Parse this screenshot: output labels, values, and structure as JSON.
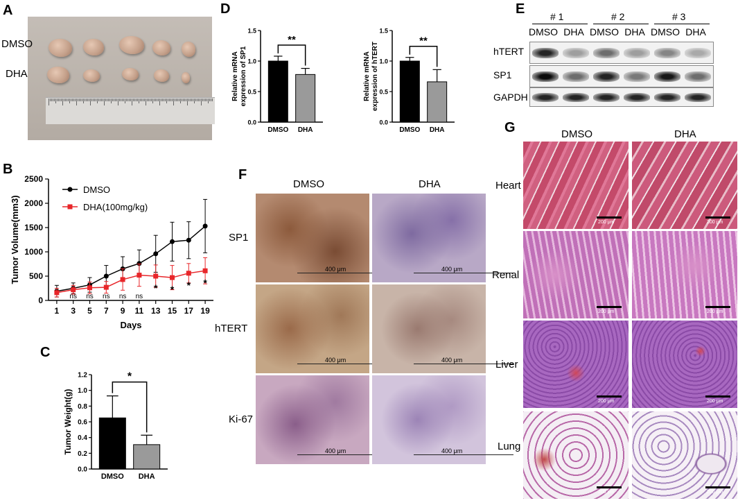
{
  "panels": {
    "A": "A",
    "B": "B",
    "C": "C",
    "D": "D",
    "E": "E",
    "F": "F",
    "G": "G"
  },
  "panelA": {
    "row_labels": [
      "DMSO",
      "DHA"
    ],
    "colors": {
      "bg": "#b8b0a8",
      "tumor": "#c4a08a",
      "ruler": "#d8d6d4"
    }
  },
  "panelB": {
    "chart_data": {
      "type": "line",
      "xlabel": "Days",
      "ylabel": "Tumor Volume(mm3)",
      "ylim": [
        0,
        2500
      ],
      "yticks": [
        0,
        500,
        1000,
        1500,
        2000,
        2500
      ],
      "x": [
        1,
        3,
        5,
        7,
        9,
        11,
        13,
        15,
        17,
        19
      ],
      "series": [
        {
          "name": "DMSO",
          "color": "#000000",
          "values": [
            190,
            250,
            320,
            500,
            650,
            760,
            960,
            1210,
            1240,
            1530
          ],
          "err": [
            120,
            110,
            150,
            220,
            250,
            280,
            380,
            400,
            380,
            550
          ]
        },
        {
          "name": "DHA(100mg/kg)",
          "color": "#e8262a",
          "values": [
            160,
            220,
            260,
            270,
            430,
            520,
            500,
            470,
            560,
            610
          ],
          "err": [
            90,
            90,
            120,
            120,
            220,
            230,
            230,
            250,
            200,
            270
          ]
        }
      ],
      "annotations": [
        "ns",
        "ns",
        "ns",
        "ns",
        "ns",
        "*",
        "*",
        "*",
        "*"
      ]
    }
  },
  "panelC": {
    "chart_data": {
      "type": "bar",
      "categories": [
        "DMSO",
        "DHA"
      ],
      "values": [
        0.65,
        0.31
      ],
      "err": [
        0.28,
        0.12
      ],
      "colors": [
        "#000000",
        "#9a9a9a"
      ],
      "ylabel": "Tumor Weight(g)",
      "ylim": [
        0,
        1.2
      ],
      "yticks": [
        "0.0",
        "0.2",
        "0.4",
        "0.6",
        "0.8",
        "1.0",
        "1.2"
      ],
      "sig": "*"
    }
  },
  "panelD": {
    "chart_data": [
      {
        "type": "bar",
        "categories": [
          "DMSO",
          "DHA"
        ],
        "values": [
          1.0,
          0.78
        ],
        "err": [
          0.08,
          0.1
        ],
        "ylabel": "Relative mRNA expression of SP1",
        "ylim": [
          0,
          1.5
        ],
        "yticks": [
          "0.0",
          "0.5",
          "1.0",
          "1.5"
        ],
        "sig": "**"
      },
      {
        "type": "bar",
        "categories": [
          "DMSO",
          "DHA"
        ],
        "values": [
          1.0,
          0.66
        ],
        "err": [
          0.06,
          0.2
        ],
        "ylabel": "Relative mRNA expression of hTERT",
        "ylim": [
          0,
          1.5
        ],
        "yticks": [
          "0.0",
          "0.5",
          "1.0",
          "1.5"
        ],
        "sig": "**"
      }
    ]
  },
  "panelE": {
    "groups": [
      "# 1",
      "# 2",
      "# 3"
    ],
    "lanes": [
      "DMSO",
      "DHA",
      "DMSO",
      "DHA",
      "DMSO",
      "DHA"
    ],
    "rows": [
      "hTERT",
      "SP1",
      "GAPDH"
    ]
  },
  "panelF": {
    "columns": [
      "DMSO",
      "DHA"
    ],
    "rows": [
      "SP1",
      "hTERT",
      "Ki-67"
    ],
    "scale": "400 μm"
  },
  "panelG": {
    "columns": [
      "DMSO",
      "DHA"
    ],
    "rows": [
      "Heart",
      "Renal",
      "Liver",
      "Lung"
    ],
    "scale": "200 μm"
  }
}
